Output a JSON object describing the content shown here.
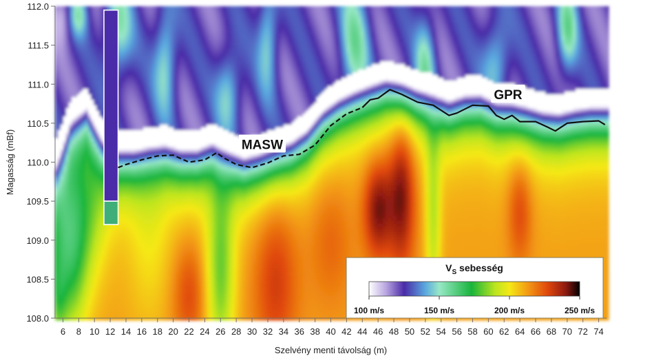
{
  "chart_data": {
    "type": "heatmap",
    "xlabel": "Szelvény menti távolság (m)",
    "ylabel": "Magasság (mBf)",
    "xlim": [
      5,
      75
    ],
    "ylim": [
      108.0,
      112.0
    ],
    "x_ticks": [
      6,
      8,
      10,
      12,
      14,
      16,
      18,
      20,
      22,
      24,
      26,
      28,
      30,
      32,
      34,
      36,
      38,
      40,
      42,
      44,
      46,
      48,
      50,
      52,
      54,
      56,
      58,
      60,
      62,
      64,
      66,
      68,
      70,
      72,
      74
    ],
    "y_ticks": [
      "108.0",
      "108.5",
      "109.0",
      "109.5",
      "110.0",
      "110.5",
      "111.0",
      "111.5",
      "112.0"
    ],
    "grid": false,
    "colorbar": {
      "title_main": "V",
      "title_sub": "S",
      "title_rest": " sebesség",
      "range": [
        100,
        250
      ],
      "unit": "m/s",
      "ticks": [
        "100 m/s",
        "150 m/s",
        "200 m/s",
        "250 m/s"
      ],
      "tick_values": [
        100,
        150,
        200,
        250
      ],
      "placement": "bottom-right"
    },
    "annotations": [
      {
        "text": "MASW",
        "x": 31.3,
        "y": 110.23
      },
      {
        "text": "GPR",
        "x": 62.5,
        "y": 110.87
      }
    ],
    "lines": [
      {
        "label": "MASW",
        "style": "dashed",
        "points": [
          [
            13.0,
            109.93
          ],
          [
            14.0,
            109.97
          ],
          [
            16.0,
            110.03
          ],
          [
            18.0,
            110.08
          ],
          [
            20.0,
            110.09
          ],
          [
            22.0,
            110.0
          ],
          [
            24.0,
            110.03
          ],
          [
            25.5,
            110.12
          ],
          [
            26.5,
            110.05
          ],
          [
            28.0,
            109.97
          ],
          [
            30.0,
            109.93
          ],
          [
            32.0,
            109.99
          ],
          [
            34.0,
            110.08
          ],
          [
            36.0,
            110.1
          ],
          [
            38.0,
            110.22
          ],
          [
            40.0,
            110.47
          ],
          [
            42.0,
            110.62
          ],
          [
            44.0,
            110.7
          ]
        ]
      },
      {
        "label": "GPR",
        "style": "solid",
        "points": [
          [
            44.0,
            110.7
          ],
          [
            45.0,
            110.8
          ],
          [
            46.0,
            110.82
          ],
          [
            47.5,
            110.93
          ],
          [
            49.0,
            110.87
          ],
          [
            51.0,
            110.77
          ],
          [
            53.0,
            110.73
          ],
          [
            55.0,
            110.6
          ],
          [
            56.0,
            110.63
          ],
          [
            58.0,
            110.73
          ],
          [
            60.0,
            110.72
          ],
          [
            61.0,
            110.6
          ],
          [
            62.0,
            110.55
          ],
          [
            63.0,
            110.6
          ],
          [
            64.0,
            110.52
          ],
          [
            66.0,
            110.52
          ],
          [
            67.5,
            110.45
          ],
          [
            68.5,
            110.4
          ],
          [
            70.0,
            110.5
          ],
          [
            72.0,
            110.52
          ],
          [
            74.0,
            110.53
          ],
          [
            74.8,
            110.48
          ]
        ]
      }
    ],
    "borehole": {
      "x_range": [
        11.2,
        13.0
      ],
      "segments": [
        {
          "from": 109.5,
          "to": 111.95,
          "color": "#4a2ba8"
        },
        {
          "from": 109.2,
          "to": 109.5,
          "color": "#3fae78"
        }
      ]
    },
    "interface_profile_x": [
      5,
      7,
      9,
      11,
      13,
      15,
      17,
      19,
      21,
      23,
      25,
      27,
      29,
      31,
      33,
      35,
      37,
      39,
      41,
      43,
      45,
      47,
      49,
      51,
      53,
      55,
      57,
      59,
      61,
      63,
      65,
      67,
      69,
      71,
      73,
      75
    ],
    "interface_profile_y": [
      109.8,
      110.35,
      110.5,
      110.1,
      109.95,
      109.95,
      110.0,
      110.02,
      109.95,
      109.95,
      110.05,
      109.95,
      109.85,
      109.9,
      109.98,
      110.05,
      110.2,
      110.45,
      110.6,
      110.7,
      110.78,
      110.85,
      110.8,
      110.72,
      110.68,
      110.58,
      110.65,
      110.66,
      110.56,
      110.55,
      110.5,
      110.44,
      110.42,
      110.47,
      110.5,
      110.5
    ],
    "max_velocity_m_s": 248
  },
  "colors": {
    "scale": [
      "#ffffff",
      "#b9a6e0",
      "#4a2ba8",
      "#5aa8df",
      "#98e8c6",
      "#19b43c",
      "#bde51f",
      "#f5e816",
      "#f39a14",
      "#e0480b",
      "#8f1a12",
      "#000000"
    ],
    "scale_stops": [
      100,
      112,
      125,
      140,
      150,
      173,
      190,
      200,
      213,
      227,
      240,
      250
    ],
    "axis": "#6f6f6f",
    "masw_line": "#111111",
    "gpr_line": "#111111"
  }
}
